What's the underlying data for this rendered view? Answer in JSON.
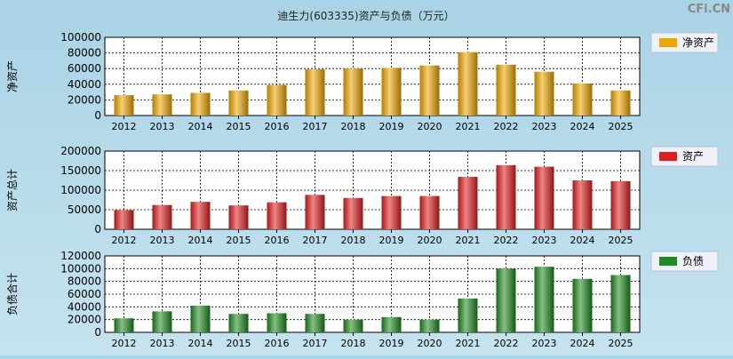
{
  "title": "迪生力(603335)资产与负债（万元）",
  "watermark": "CFi.CN",
  "chart_data": [
    {
      "type": "bar",
      "name": "net-assets",
      "ylabel": "净资产",
      "legend": "净资产",
      "color": "#f0a800",
      "ylim": [
        0,
        100000
      ],
      "yticks": [
        0,
        20000,
        40000,
        60000,
        80000,
        100000
      ],
      "categories": [
        "2012",
        "2013",
        "2014",
        "2015",
        "2016",
        "2017",
        "2018",
        "2019",
        "2020",
        "2021",
        "2022",
        "2023",
        "2024",
        "2025"
      ],
      "values": [
        26000,
        27000,
        29000,
        32000,
        39000,
        59000,
        60000,
        61000,
        64000,
        81000,
        65000,
        56000,
        41000,
        32000
      ],
      "grid": true,
      "legend_position": "right"
    },
    {
      "type": "bar",
      "name": "total-assets",
      "ylabel": "资产总计",
      "legend": "资产",
      "color": "#e02020",
      "ylim": [
        0,
        200000
      ],
      "yticks": [
        0,
        50000,
        100000,
        150000,
        200000
      ],
      "categories": [
        "2012",
        "2013",
        "2014",
        "2015",
        "2016",
        "2017",
        "2018",
        "2019",
        "2020",
        "2021",
        "2022",
        "2023",
        "2024",
        "2025"
      ],
      "values": [
        49000,
        62000,
        70000,
        61000,
        69000,
        88000,
        80000,
        85000,
        85000,
        134000,
        164000,
        160000,
        125000,
        123000
      ],
      "grid": true,
      "legend_position": "right"
    },
    {
      "type": "bar",
      "name": "total-liabilities",
      "ylabel": "负债合计",
      "legend": "负债",
      "color": "#1f8a1f",
      "ylim": [
        0,
        120000
      ],
      "yticks": [
        0,
        20000,
        40000,
        60000,
        80000,
        100000,
        120000
      ],
      "categories": [
        "2012",
        "2013",
        "2014",
        "2015",
        "2016",
        "2017",
        "2018",
        "2019",
        "2020",
        "2021",
        "2022",
        "2023",
        "2024",
        "2025"
      ],
      "values": [
        22000,
        33000,
        42000,
        29000,
        30000,
        29000,
        20000,
        24000,
        20000,
        53000,
        100000,
        103000,
        84000,
        90000
      ],
      "grid": true,
      "legend_position": "right"
    }
  ]
}
